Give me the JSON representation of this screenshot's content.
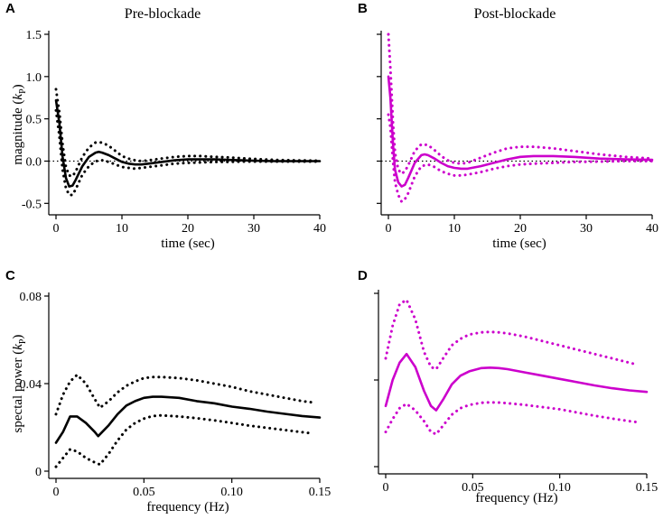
{
  "colors": {
    "pre": "#000000",
    "post": "#cc00cc"
  },
  "chart_data": [
    {
      "id": "A",
      "type": "line",
      "title": "Pre-blockade",
      "xlabel": "time (sec)",
      "ylabel_main": "magnitude (",
      "ylabel_italic": "k",
      "ylabel_sub": "P",
      "ylabel_close": ")",
      "xlim": [
        0,
        40
      ],
      "ylim": [
        -0.55,
        1.5
      ],
      "xticks": [
        0,
        10,
        20,
        30,
        40
      ],
      "xtick_labels": [
        "0",
        "10",
        "20",
        "30",
        "40"
      ],
      "yticks": [
        -0.5,
        0.0,
        0.5,
        1.0,
        1.5
      ],
      "ytick_labels": [
        "-0.5",
        "0.0",
        "0.5",
        "1.0",
        "1.5"
      ],
      "zero_line": true,
      "color_key": "pre",
      "series": [
        {
          "name": "mean",
          "style": "solid",
          "x": [
            0,
            0.5,
            1.0,
            1.5,
            2,
            2.5,
            3,
            4,
            5,
            6,
            6.5,
            7,
            8,
            9,
            10,
            11,
            12,
            13,
            14,
            16,
            18,
            20,
            22,
            24,
            26,
            28,
            30,
            33,
            36,
            40
          ],
          "y": [
            0.72,
            0.45,
            0.05,
            -0.2,
            -0.3,
            -0.29,
            -0.22,
            -0.06,
            0.05,
            0.1,
            0.11,
            0.1,
            0.07,
            0.03,
            -0.01,
            -0.03,
            -0.04,
            -0.04,
            -0.03,
            -0.01,
            0.01,
            0.02,
            0.02,
            0.02,
            0.015,
            0.01,
            0.005,
            0.0,
            0.0,
            0.0
          ]
        },
        {
          "name": "upper",
          "style": "dotted",
          "x": [
            0,
            0.5,
            1.0,
            1.5,
            2,
            2.5,
            3,
            4,
            5,
            6,
            7,
            8,
            9,
            10,
            11,
            12,
            13,
            14,
            16,
            18,
            20,
            22,
            24,
            26,
            28,
            30,
            33,
            36,
            40
          ],
          "y": [
            0.85,
            0.58,
            0.2,
            -0.07,
            -0.17,
            -0.18,
            -0.12,
            0.05,
            0.16,
            0.22,
            0.22,
            0.18,
            0.12,
            0.06,
            0.03,
            0.01,
            0.0,
            0.01,
            0.03,
            0.05,
            0.06,
            0.06,
            0.05,
            0.045,
            0.035,
            0.025,
            0.015,
            0.01,
            0.005
          ]
        },
        {
          "name": "lower",
          "style": "dotted",
          "x": [
            0,
            0.5,
            1.0,
            1.5,
            2,
            2.5,
            3,
            4,
            5,
            6,
            7,
            8,
            9,
            10,
            11,
            12,
            13,
            14,
            16,
            18,
            20,
            22,
            24,
            26,
            28,
            30,
            33,
            36,
            40
          ],
          "y": [
            0.6,
            0.3,
            -0.1,
            -0.32,
            -0.4,
            -0.4,
            -0.33,
            -0.16,
            -0.06,
            0.0,
            0.01,
            -0.01,
            -0.04,
            -0.07,
            -0.08,
            -0.09,
            -0.08,
            -0.07,
            -0.05,
            -0.03,
            -0.02,
            -0.015,
            -0.01,
            -0.01,
            -0.005,
            -0.005,
            -0.005,
            -0.005,
            -0.005
          ]
        }
      ]
    },
    {
      "id": "B",
      "type": "line",
      "title": "Post-blockade",
      "xlabel": "time (sec)",
      "xlim": [
        0,
        40
      ],
      "ylim": [
        -0.55,
        1.5
      ],
      "xticks": [
        0,
        10,
        20,
        30,
        40
      ],
      "xtick_labels": [
        "0",
        "10",
        "20",
        "30",
        "40"
      ],
      "yticks": [
        -0.5,
        0.0,
        0.5,
        1.0,
        1.5
      ],
      "ytick_labels": [],
      "zero_line": true,
      "color_key": "post",
      "series": [
        {
          "name": "mean",
          "style": "solid",
          "x": [
            0,
            0.3,
            0.7,
            1.0,
            1.5,
            2,
            2.5,
            3,
            4,
            5,
            5.5,
            6,
            7,
            8,
            9,
            10,
            11,
            12,
            14,
            16,
            18,
            20,
            22,
            25,
            28,
            32,
            36,
            40
          ],
          "y": [
            1.0,
            0.75,
            0.2,
            -0.1,
            -0.25,
            -0.3,
            -0.28,
            -0.2,
            -0.02,
            0.07,
            0.08,
            0.07,
            0.03,
            -0.02,
            -0.06,
            -0.08,
            -0.09,
            -0.09,
            -0.06,
            -0.02,
            0.02,
            0.05,
            0.06,
            0.06,
            0.05,
            0.03,
            0.02,
            0.015
          ]
        },
        {
          "name": "upper",
          "style": "dotted",
          "x": [
            0,
            0.3,
            0.7,
            1.0,
            1.5,
            2,
            2.5,
            3,
            4,
            5,
            6,
            7,
            8,
            9,
            10,
            11,
            12,
            14,
            16,
            18,
            20,
            22,
            25,
            28,
            32,
            36,
            40
          ],
          "y": [
            1.5,
            1.1,
            0.45,
            0.1,
            -0.1,
            -0.15,
            -0.12,
            -0.05,
            0.12,
            0.2,
            0.19,
            0.13,
            0.06,
            0.01,
            -0.02,
            -0.03,
            -0.02,
            0.04,
            0.1,
            0.15,
            0.17,
            0.17,
            0.15,
            0.12,
            0.08,
            0.05,
            0.03
          ]
        },
        {
          "name": "lower",
          "style": "dotted",
          "x": [
            0,
            0.3,
            0.7,
            1.0,
            1.5,
            2,
            2.5,
            3,
            4,
            5,
            6,
            7,
            8,
            9,
            10,
            11,
            12,
            14,
            16,
            18,
            20,
            22,
            25,
            28,
            32,
            36,
            40
          ],
          "y": [
            0.55,
            0.4,
            0.0,
            -0.25,
            -0.4,
            -0.48,
            -0.45,
            -0.38,
            -0.18,
            -0.06,
            -0.04,
            -0.07,
            -0.12,
            -0.15,
            -0.17,
            -0.17,
            -0.16,
            -0.13,
            -0.09,
            -0.06,
            -0.04,
            -0.03,
            -0.02,
            -0.01,
            -0.005,
            0.0,
            0.0
          ]
        }
      ]
    },
    {
      "id": "C",
      "type": "line",
      "title": "",
      "xlabel": "frequency (Hz)",
      "ylabel_main": "spectal power (",
      "ylabel_italic": "k",
      "ylabel_sub": "P",
      "ylabel_close": ")",
      "xlim": [
        0,
        0.15
      ],
      "ylim": [
        0,
        0.08
      ],
      "xticks": [
        0,
        0.05,
        0.1,
        0.15
      ],
      "xtick_labels": [
        "0",
        "0.05",
        "0.10",
        "0.15"
      ],
      "yticks": [
        0,
        0.04,
        0.08
      ],
      "ytick_labels": [
        "0",
        "0.04",
        "0.08"
      ],
      "zero_line": false,
      "color_key": "pre",
      "series": [
        {
          "name": "mean",
          "style": "solid",
          "x": [
            0,
            0.004,
            0.008,
            0.012,
            0.017,
            0.022,
            0.024,
            0.03,
            0.035,
            0.04,
            0.045,
            0.05,
            0.055,
            0.06,
            0.07,
            0.08,
            0.09,
            0.1,
            0.11,
            0.12,
            0.13,
            0.14,
            0.15
          ],
          "y": [
            0.013,
            0.018,
            0.025,
            0.025,
            0.022,
            0.018,
            0.016,
            0.021,
            0.026,
            0.03,
            0.032,
            0.0335,
            0.034,
            0.034,
            0.0335,
            0.032,
            0.031,
            0.0295,
            0.0285,
            0.0272,
            0.0262,
            0.0252,
            0.0245
          ]
        },
        {
          "name": "upper",
          "style": "dotted",
          "x": [
            0,
            0.004,
            0.008,
            0.012,
            0.017,
            0.022,
            0.025,
            0.03,
            0.035,
            0.04,
            0.045,
            0.05,
            0.055,
            0.06,
            0.07,
            0.08,
            0.09,
            0.1,
            0.11,
            0.12,
            0.13,
            0.14,
            0.145
          ],
          "y": [
            0.026,
            0.035,
            0.041,
            0.044,
            0.04,
            0.033,
            0.029,
            0.032,
            0.036,
            0.039,
            0.041,
            0.0425,
            0.043,
            0.043,
            0.0425,
            0.0415,
            0.04,
            0.0385,
            0.0365,
            0.035,
            0.0335,
            0.032,
            0.0315
          ]
        },
        {
          "name": "lower",
          "style": "dotted",
          "x": [
            0,
            0.004,
            0.008,
            0.012,
            0.017,
            0.022,
            0.025,
            0.03,
            0.035,
            0.04,
            0.045,
            0.05,
            0.055,
            0.06,
            0.07,
            0.08,
            0.09,
            0.1,
            0.11,
            0.12,
            0.13,
            0.14,
            0.145
          ],
          "y": [
            0.002,
            0.006,
            0.01,
            0.009,
            0.006,
            0.004,
            0.003,
            0.008,
            0.014,
            0.019,
            0.022,
            0.024,
            0.0252,
            0.0255,
            0.025,
            0.0242,
            0.0232,
            0.022,
            0.0208,
            0.0198,
            0.0188,
            0.0178,
            0.0173
          ]
        }
      ]
    },
    {
      "id": "D",
      "type": "line",
      "title": "",
      "xlabel": "frequency (Hz)",
      "xlim": [
        0,
        0.15
      ],
      "ylim": [
        0,
        0.08
      ],
      "xticks": [
        0,
        0.05,
        0.1,
        0.15
      ],
      "xtick_labels": [
        "0",
        "0.05",
        "0.10",
        "0.15"
      ],
      "yticks": [
        0,
        0.04,
        0.08
      ],
      "ytick_labels": [],
      "zero_line": false,
      "color_key": "post",
      "series": [
        {
          "name": "mean",
          "style": "solid",
          "x": [
            0,
            0.004,
            0.008,
            0.012,
            0.017,
            0.022,
            0.026,
            0.029,
            0.033,
            0.038,
            0.043,
            0.048,
            0.055,
            0.06,
            0.065,
            0.07,
            0.08,
            0.09,
            0.1,
            0.11,
            0.12,
            0.13,
            0.14,
            0.15
          ],
          "y": [
            0.028,
            0.04,
            0.048,
            0.052,
            0.046,
            0.035,
            0.028,
            0.026,
            0.031,
            0.038,
            0.042,
            0.044,
            0.0455,
            0.0457,
            0.0455,
            0.045,
            0.0435,
            0.042,
            0.0405,
            0.039,
            0.0375,
            0.0362,
            0.0352,
            0.0345
          ]
        },
        {
          "name": "upper",
          "style": "dotted",
          "x": [
            0,
            0.004,
            0.008,
            0.012,
            0.017,
            0.022,
            0.026,
            0.029,
            0.033,
            0.038,
            0.043,
            0.048,
            0.055,
            0.06,
            0.065,
            0.07,
            0.08,
            0.09,
            0.1,
            0.11,
            0.12,
            0.13,
            0.14,
            0.145
          ],
          "y": [
            0.05,
            0.065,
            0.075,
            0.077,
            0.068,
            0.053,
            0.046,
            0.045,
            0.05,
            0.056,
            0.059,
            0.061,
            0.062,
            0.0622,
            0.062,
            0.0615,
            0.06,
            0.058,
            0.056,
            0.054,
            0.052,
            0.05,
            0.048,
            0.047
          ]
        },
        {
          "name": "lower",
          "style": "dotted",
          "x": [
            0,
            0.004,
            0.008,
            0.012,
            0.017,
            0.022,
            0.026,
            0.029,
            0.033,
            0.038,
            0.043,
            0.048,
            0.055,
            0.06,
            0.065,
            0.07,
            0.08,
            0.09,
            0.1,
            0.11,
            0.12,
            0.13,
            0.14,
            0.145
          ],
          "y": [
            0.016,
            0.022,
            0.027,
            0.029,
            0.026,
            0.021,
            0.016,
            0.015,
            0.019,
            0.024,
            0.027,
            0.0285,
            0.0295,
            0.0297,
            0.0296,
            0.0293,
            0.0285,
            0.0275,
            0.0265,
            0.025,
            0.0235,
            0.0222,
            0.021,
            0.0205
          ]
        }
      ]
    }
  ]
}
